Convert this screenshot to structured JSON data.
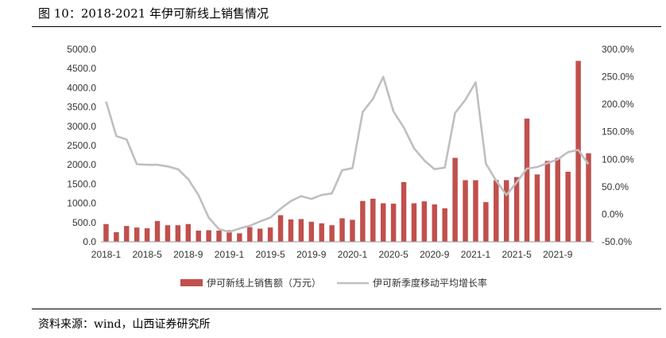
{
  "header": {
    "title": "图 10：2018-2021 年伊可新线上销售情况"
  },
  "footer": {
    "source": "资料来源：wind，山西证券研究所"
  },
  "chart_data": {
    "type": "bar",
    "x": [
      "2018-1",
      "2018-2",
      "2018-3",
      "2018-4",
      "2018-5",
      "2018-6",
      "2018-7",
      "2018-8",
      "2018-9",
      "2018-10",
      "2018-11",
      "2018-12",
      "2019-1",
      "2019-2",
      "2019-3",
      "2019-4",
      "2019-5",
      "2019-6",
      "2019-7",
      "2019-8",
      "2019-9",
      "2019-10",
      "2019-11",
      "2019-12",
      "2020-1",
      "2020-2",
      "2020-3",
      "2020-4",
      "2020-5",
      "2020-6",
      "2020-7",
      "2020-8",
      "2020-9",
      "2020-10",
      "2020-11",
      "2020-12",
      "2021-1",
      "2021-2",
      "2021-3",
      "2021-4",
      "2021-5",
      "2021-6",
      "2021-7",
      "2021-8",
      "2021-9",
      "2021-10",
      "2021-11",
      "2021-12"
    ],
    "x_tick_labels": [
      "2018-1",
      "2018-5",
      "2018-9",
      "2019-1",
      "2019-5",
      "2019-9",
      "2020-1",
      "2020-5",
      "2020-9",
      "2021-1",
      "2021-5",
      "2021-9"
    ],
    "series": [
      {
        "name": "伊可新线上销售额（万元）",
        "type": "bar",
        "axis": "left",
        "color": "#C0504D",
        "values": [
          460,
          250,
          410,
          370,
          350,
          540,
          430,
          430,
          460,
          290,
          300,
          290,
          300,
          220,
          380,
          340,
          370,
          690,
          580,
          590,
          520,
          480,
          430,
          610,
          570,
          1060,
          1120,
          1000,
          990,
          1550,
          1000,
          1050,
          970,
          870,
          2180,
          1600,
          1600,
          1030,
          1600,
          1600,
          1680,
          3200,
          1750,
          2100,
          2180,
          1820,
          4700,
          2300
        ]
      },
      {
        "name": "伊可新季度移动平均增长率",
        "type": "line",
        "axis": "right",
        "color": "#BFBFBF",
        "values": [
          205,
          142,
          136,
          91,
          90,
          90,
          87,
          82,
          64,
          35,
          -6,
          -27,
          -32,
          -26,
          -21,
          -13,
          -6,
          10,
          24,
          33,
          28,
          35,
          38,
          80,
          84,
          186,
          210,
          250,
          187,
          158,
          120,
          98,
          82,
          85,
          184,
          208,
          240,
          92,
          61,
          35,
          58,
          83,
          86,
          93,
          100,
          113,
          117,
          91
        ]
      }
    ],
    "y_left": {
      "min": 0,
      "max": 5000,
      "ticks": [
        "0.0",
        "500.0",
        "1000.0",
        "1500.0",
        "2000.0",
        "2500.0",
        "3000.0",
        "3500.0",
        "4000.0",
        "4500.0",
        "5000.0"
      ]
    },
    "y_right": {
      "min": -50,
      "max": 300,
      "ticks": [
        "-50.0%",
        "0.0%",
        "50.0%",
        "100.0%",
        "150.0%",
        "200.0%",
        "250.0%",
        "300.0%"
      ]
    },
    "grid": false,
    "legend_position": "bottom"
  }
}
